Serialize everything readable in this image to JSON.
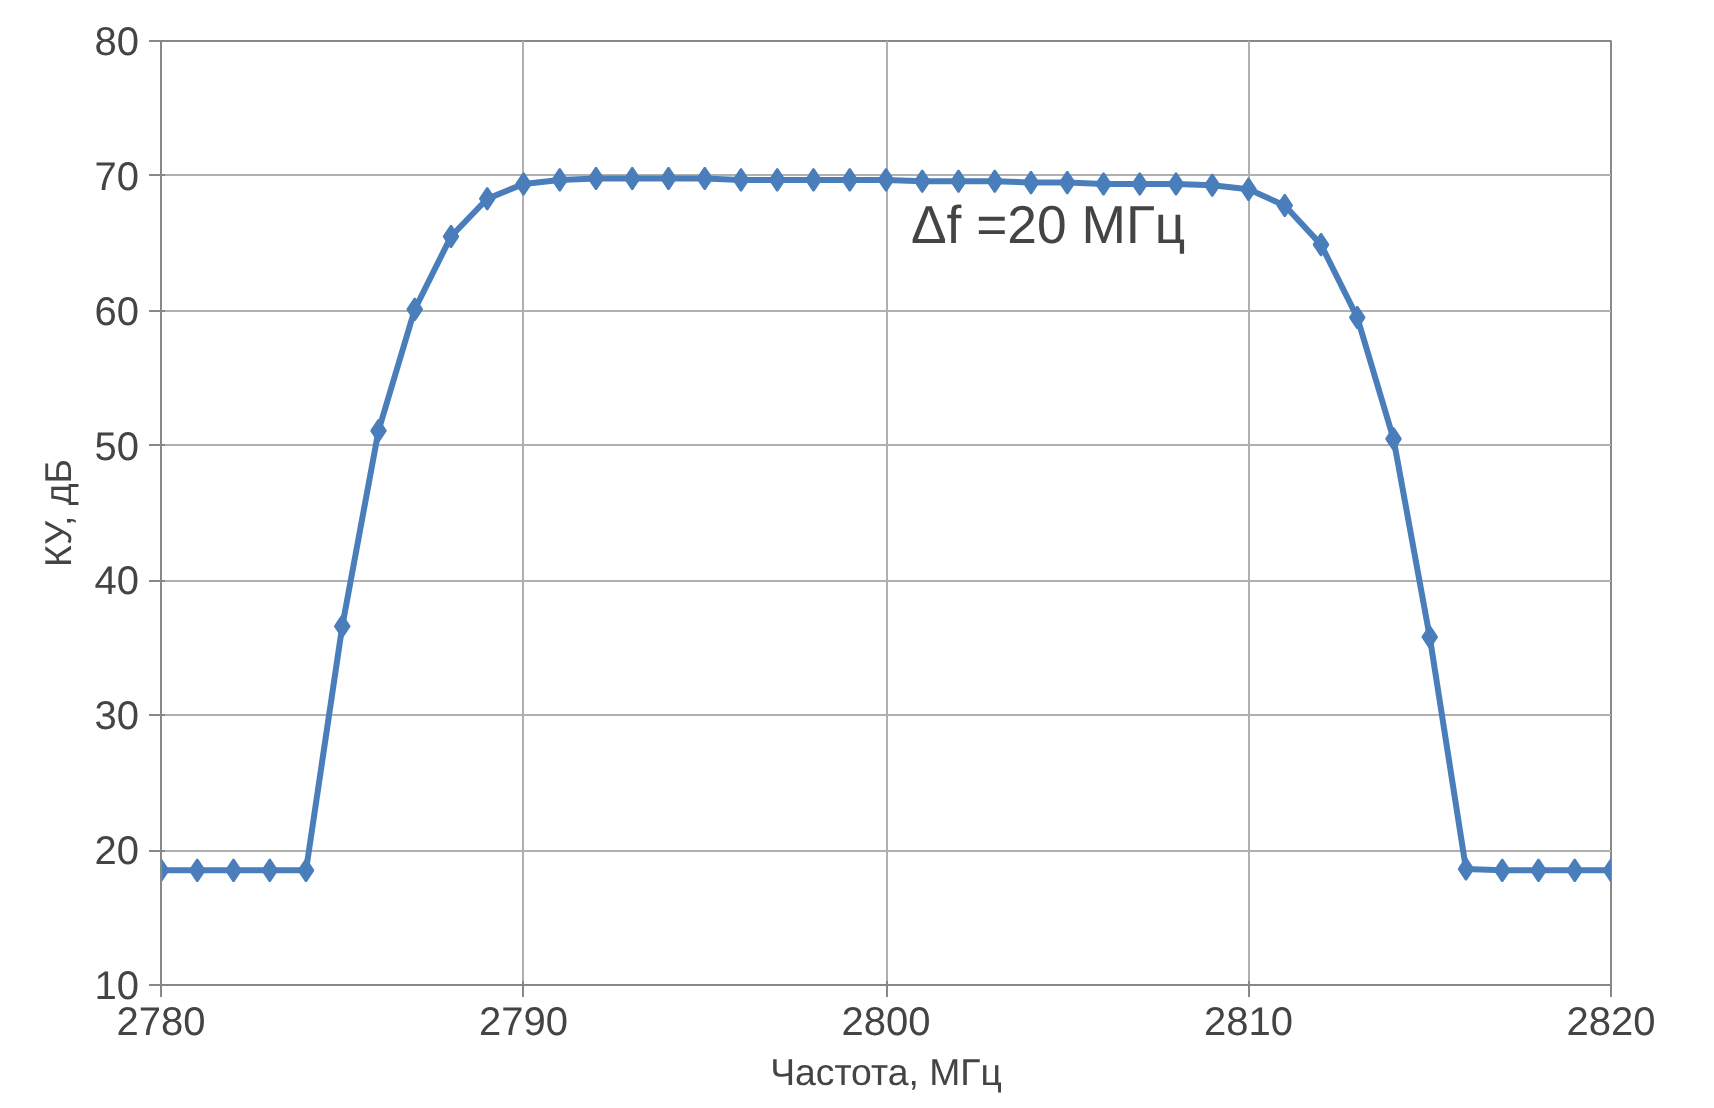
{
  "chart_data": {
    "type": "line",
    "xlabel": "Частота, МГц",
    "ylabel": "КУ, дБ",
    "x": [
      2780,
      2781,
      2782,
      2783,
      2784,
      2785,
      2786,
      2787,
      2788,
      2789,
      2790,
      2791,
      2792,
      2793,
      2794,
      2795,
      2796,
      2797,
      2798,
      2799,
      2800,
      2801,
      2802,
      2803,
      2804,
      2805,
      2806,
      2807,
      2808,
      2809,
      2810,
      2811,
      2812,
      2813,
      2814,
      2815,
      2816,
      2817,
      2818,
      2819,
      2820
    ],
    "series": [
      {
        "color": "#4a7ebb",
        "values": [
          18.5,
          18.5,
          18.5,
          18.5,
          18.5,
          36.6,
          51.1,
          60.1,
          65.5,
          68.3,
          69.4,
          69.7,
          69.8,
          69.8,
          69.8,
          69.8,
          69.7,
          69.7,
          69.7,
          69.7,
          69.7,
          69.6,
          69.6,
          69.6,
          69.5,
          69.5,
          69.4,
          69.4,
          69.4,
          69.3,
          69.0,
          67.8,
          64.9,
          59.5,
          50.5,
          35.8,
          18.6,
          18.5,
          18.5,
          18.5,
          18.5
        ]
      }
    ],
    "xlim": [
      2780,
      2820
    ],
    "xticks": [
      2780,
      2790,
      2800,
      2810,
      2820
    ],
    "ylim": [
      10,
      80
    ],
    "yticks": [
      10,
      20,
      30,
      40,
      50,
      60,
      70,
      80
    ],
    "grid": true,
    "marker": "diamond",
    "line_style": "solid",
    "annotations": [
      "Δf =20 МГц"
    ]
  }
}
